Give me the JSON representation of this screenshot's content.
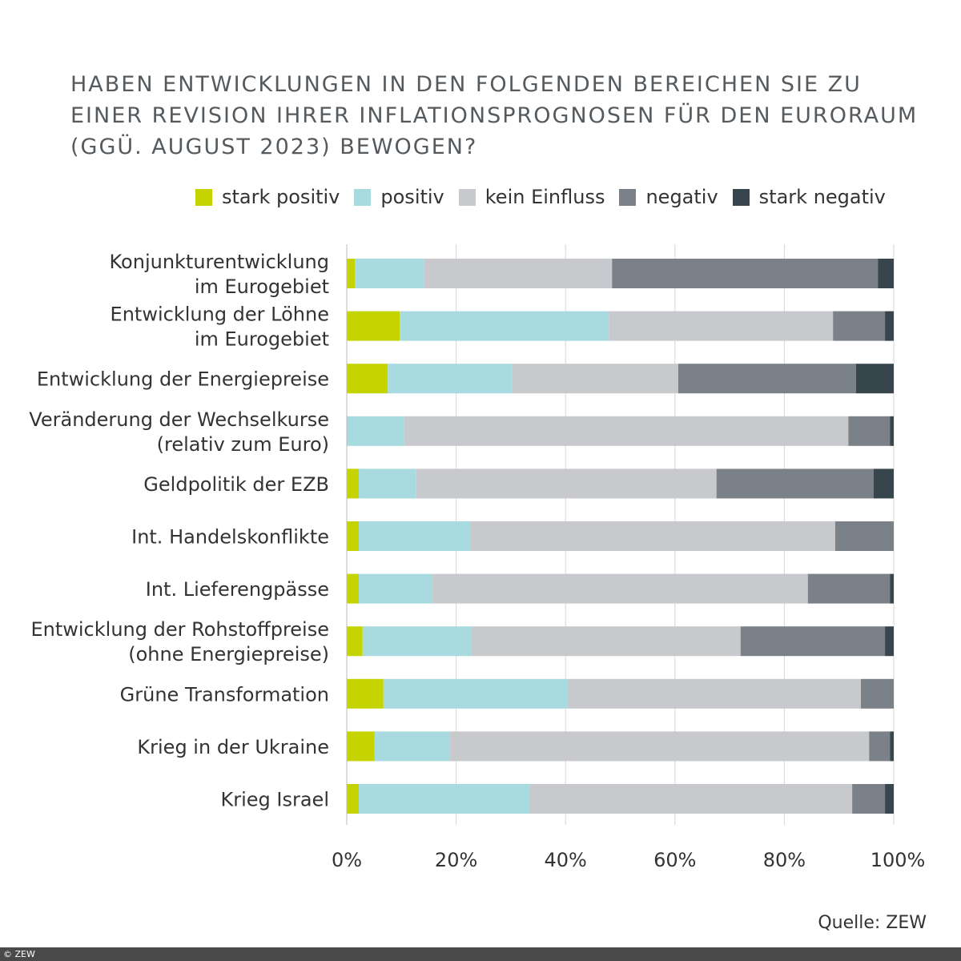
{
  "chart_data": {
    "type": "bar",
    "orientation": "horizontal",
    "stacked": true,
    "title": "Haben Entwicklungen in den folgenden Bereichen Sie zu einer Revision Ihrer Inflationsprognosen für den Euroraum (ggü. August 2023) bewogen?",
    "categories": [
      [
        "Konjunkturentwicklung",
        "im Eurogebiet"
      ],
      [
        "Entwicklung der Löhne",
        "im Eurogebiet"
      ],
      [
        "Entwicklung der Energiepreise"
      ],
      [
        "Veränderung der Wechselkurse",
        "(relativ zum Euro)"
      ],
      [
        "Geldpolitik der EZB"
      ],
      [
        "Int. Handelskonflikte"
      ],
      [
        "Int. Lieferengpässe"
      ],
      [
        "Entwicklung der Rohstoffpreise",
        "(ohne Energiepreise)"
      ],
      [
        "Grüne Transformation"
      ],
      [
        "Krieg in der Ukraine"
      ],
      [
        "Krieg Israel"
      ]
    ],
    "series": [
      {
        "name": "stark positiv",
        "color": "#c5d300",
        "values": [
          1.5,
          9.7,
          7.5,
          0,
          2.2,
          2.2,
          2.2,
          2.9,
          6.7,
          5.1,
          2.2
        ]
      },
      {
        "name": "positiv",
        "color": "#a8dbe0",
        "values": [
          12.6,
          38.2,
          22.7,
          10.5,
          10.5,
          20.5,
          13.5,
          19.9,
          33.7,
          13.8,
          31.2
        ]
      },
      {
        "name": "kein Einfluss",
        "color": "#c8c9cc",
        "values": [
          34.4,
          41.0,
          30.4,
          81.2,
          54.9,
          66.6,
          68.6,
          49.2,
          53.6,
          76.6,
          59.0
        ]
      },
      {
        "name": "negativ",
        "color": "#7b8189",
        "values": [
          48.6,
          9.5,
          32.5,
          7.6,
          28.7,
          10.7,
          15.0,
          26.4,
          6.0,
          3.8,
          6.0
        ]
      },
      {
        "name": "stark negativ",
        "color": "#37454d",
        "values": [
          2.9,
          1.6,
          6.9,
          0.7,
          3.7,
          0,
          0.7,
          1.6,
          0,
          0.7,
          1.6
        ]
      }
    ],
    "xlim": [
      0,
      100
    ],
    "xticks": [
      "0%",
      "20%",
      "40%",
      "60%",
      "80%",
      "100%"
    ],
    "grid": true,
    "legend": "top"
  },
  "source": "Quelle: ZEW",
  "footer": "© ZEW"
}
